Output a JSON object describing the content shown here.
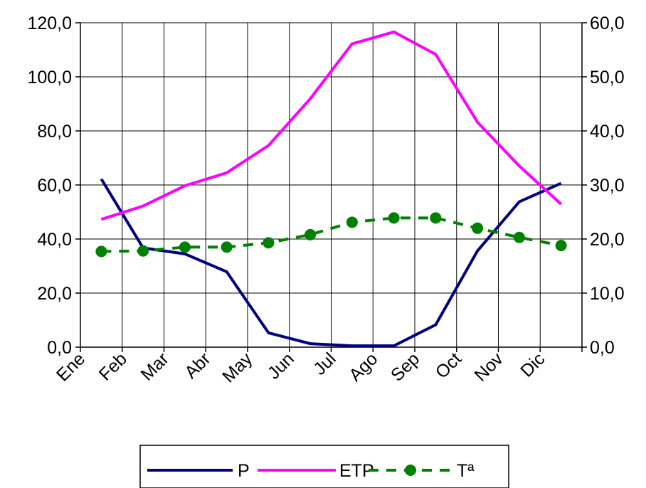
{
  "chart_data": {
    "type": "line",
    "categories": [
      "Ene",
      "Feb",
      "Mar",
      "Abr",
      "May",
      "Jun",
      "Jul",
      "Ago",
      "Sep",
      "Oct",
      "Nov",
      "Dic"
    ],
    "y_left": {
      "range": [
        0,
        120
      ],
      "ticks": [
        "0,0",
        "20,0",
        "40,0",
        "60,0",
        "80,0",
        "100,0",
        "120,0"
      ]
    },
    "y_right": {
      "range": [
        0,
        60
      ],
      "ticks": [
        "0,0",
        "10,0",
        "20,0",
        "30,0",
        "40,0",
        "50,0",
        "60,0"
      ]
    },
    "grid": true,
    "legend_position": "bottom",
    "series": [
      {
        "name": "P",
        "axis": "left",
        "color": "#000080",
        "style": "solid",
        "values": [
          62.2,
          36.7,
          34.5,
          27.9,
          5.3,
          1.3,
          0.5,
          0.5,
          8.3,
          35.6,
          53.8,
          60.6
        ]
      },
      {
        "name": "ETP",
        "axis": "left",
        "color": "#ff00ff",
        "style": "solid",
        "values": [
          47.3,
          52.2,
          59.7,
          64.5,
          74.6,
          91.9,
          112.2,
          116.6,
          108.3,
          83.2,
          67.0,
          52.9
        ]
      },
      {
        "name": "Tª",
        "axis": "right",
        "color": "#008000",
        "style": "dashed-markers",
        "values": [
          17.7,
          17.8,
          18.5,
          18.5,
          19.3,
          20.8,
          23.1,
          23.9,
          23.9,
          22.0,
          20.3,
          18.8
        ]
      }
    ]
  }
}
